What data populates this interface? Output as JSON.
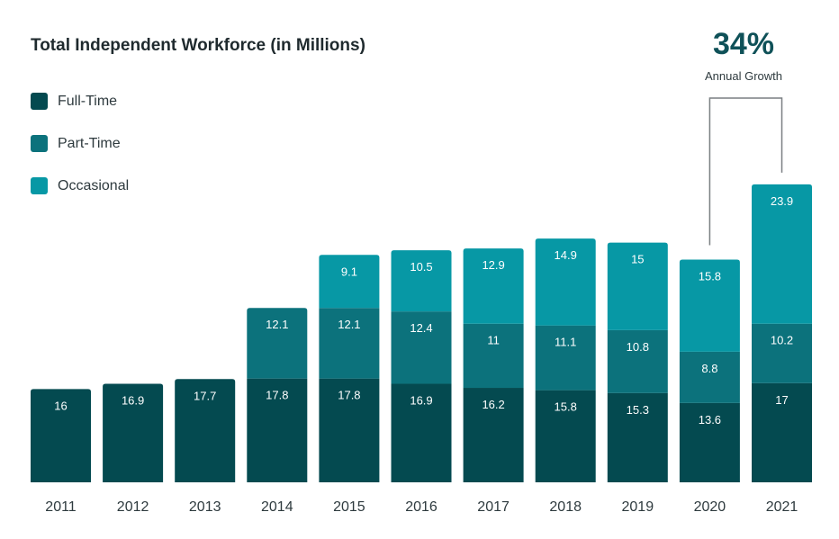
{
  "chart_data": {
    "type": "bar",
    "stacked": true,
    "title": "Total Independent Workforce (in Millions)",
    "xlabel": "",
    "ylabel": "",
    "categories": [
      "2011",
      "2012",
      "2013",
      "2014",
      "2015",
      "2016",
      "2017",
      "2018",
      "2019",
      "2020",
      "2021"
    ],
    "series": [
      {
        "name": "Full-Time",
        "color": "#044a50",
        "values": [
          16,
          16.9,
          17.7,
          17.8,
          17.8,
          16.9,
          16.2,
          15.8,
          15.3,
          13.6,
          17
        ]
      },
      {
        "name": "Part-Time",
        "color": "#0c727c",
        "values": [
          null,
          null,
          null,
          12.1,
          12.1,
          12.4,
          11,
          11.1,
          10.8,
          8.8,
          10.2
        ]
      },
      {
        "name": "Occasional",
        "color": "#0798a5",
        "values": [
          null,
          null,
          null,
          null,
          9.1,
          10.5,
          12.9,
          14.9,
          15,
          15.8,
          23.9
        ]
      }
    ],
    "annotation": {
      "value": "34%",
      "caption": "Annual Growth",
      "from": "2020",
      "to": "2021"
    },
    "legend_position": "top-left",
    "grid": false
  }
}
